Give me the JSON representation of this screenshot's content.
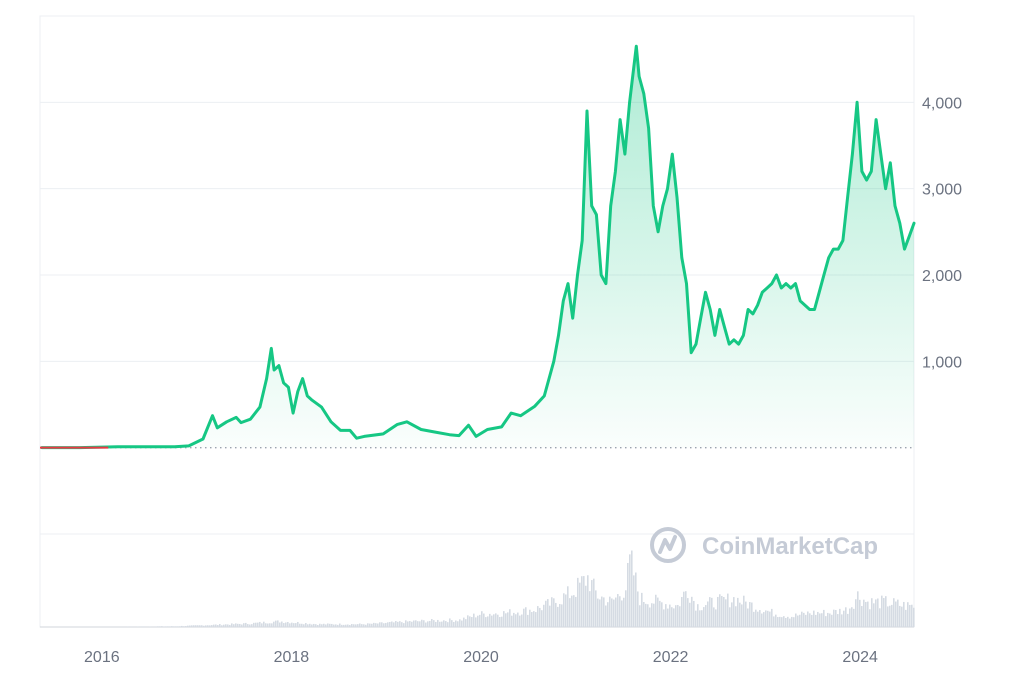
{
  "watermark": {
    "text": "CoinMarketCap",
    "icon": "coinmarketcap-logo-icon"
  },
  "colors": {
    "line": "#16c784",
    "area_top": "#16c784",
    "baseline_dotted": "#9ca3af",
    "early_segment": "#ea3943",
    "grid": "#eceff3",
    "volume": "#d5dbe3"
  },
  "chart_data": {
    "type": "area",
    "series": [
      {
        "values": [
          [
            2015.6,
            1
          ],
          [
            2016.0,
            1
          ],
          [
            2016.4,
            10
          ],
          [
            2016.8,
            10
          ],
          [
            2017.0,
            10
          ],
          [
            2017.15,
            20
          ],
          [
            2017.3,
            100
          ],
          [
            2017.4,
            370
          ],
          [
            2017.45,
            230
          ],
          [
            2017.55,
            300
          ],
          [
            2017.65,
            350
          ],
          [
            2017.7,
            290
          ],
          [
            2017.8,
            330
          ],
          [
            2017.9,
            470
          ],
          [
            2017.97,
            800
          ],
          [
            2018.02,
            1150
          ],
          [
            2018.05,
            900
          ],
          [
            2018.1,
            950
          ],
          [
            2018.15,
            750
          ],
          [
            2018.2,
            700
          ],
          [
            2018.25,
            400
          ],
          [
            2018.3,
            650
          ],
          [
            2018.35,
            800
          ],
          [
            2018.4,
            600
          ],
          [
            2018.45,
            550
          ],
          [
            2018.55,
            470
          ],
          [
            2018.65,
            300
          ],
          [
            2018.75,
            200
          ],
          [
            2018.85,
            200
          ],
          [
            2018.92,
            110
          ],
          [
            2019.0,
            130
          ],
          [
            2019.2,
            160
          ],
          [
            2019.35,
            270
          ],
          [
            2019.45,
            300
          ],
          [
            2019.6,
            210
          ],
          [
            2019.75,
            180
          ],
          [
            2019.9,
            150
          ],
          [
            2020.0,
            140
          ],
          [
            2020.1,
            260
          ],
          [
            2020.18,
            130
          ],
          [
            2020.3,
            210
          ],
          [
            2020.45,
            240
          ],
          [
            2020.55,
            400
          ],
          [
            2020.65,
            370
          ],
          [
            2020.8,
            480
          ],
          [
            2020.9,
            600
          ],
          [
            2021.0,
            1000
          ],
          [
            2021.05,
            1300
          ],
          [
            2021.1,
            1700
          ],
          [
            2021.15,
            1900
          ],
          [
            2021.2,
            1500
          ],
          [
            2021.25,
            2000
          ],
          [
            2021.3,
            2400
          ],
          [
            2021.35,
            3900
          ],
          [
            2021.4,
            2800
          ],
          [
            2021.45,
            2700
          ],
          [
            2021.5,
            2000
          ],
          [
            2021.55,
            1900
          ],
          [
            2021.6,
            2800
          ],
          [
            2021.65,
            3200
          ],
          [
            2021.7,
            3800
          ],
          [
            2021.75,
            3400
          ],
          [
            2021.8,
            4000
          ],
          [
            2021.87,
            4650
          ],
          [
            2021.9,
            4300
          ],
          [
            2021.95,
            4100
          ],
          [
            2022.0,
            3700
          ],
          [
            2022.05,
            2800
          ],
          [
            2022.1,
            2500
          ],
          [
            2022.15,
            2800
          ],
          [
            2022.2,
            3000
          ],
          [
            2022.25,
            3400
          ],
          [
            2022.3,
            2900
          ],
          [
            2022.35,
            2200
          ],
          [
            2022.4,
            1900
          ],
          [
            2022.45,
            1100
          ],
          [
            2022.5,
            1200
          ],
          [
            2022.55,
            1500
          ],
          [
            2022.6,
            1800
          ],
          [
            2022.65,
            1600
          ],
          [
            2022.7,
            1300
          ],
          [
            2022.75,
            1600
          ],
          [
            2022.8,
            1400
          ],
          [
            2022.85,
            1200
          ],
          [
            2022.9,
            1250
          ],
          [
            2022.95,
            1200
          ],
          [
            2023.0,
            1300
          ],
          [
            2023.05,
            1600
          ],
          [
            2023.1,
            1550
          ],
          [
            2023.15,
            1650
          ],
          [
            2023.2,
            1800
          ],
          [
            2023.25,
            1850
          ],
          [
            2023.3,
            1900
          ],
          [
            2023.35,
            2000
          ],
          [
            2023.4,
            1850
          ],
          [
            2023.45,
            1900
          ],
          [
            2023.5,
            1850
          ],
          [
            2023.55,
            1900
          ],
          [
            2023.6,
            1700
          ],
          [
            2023.65,
            1650
          ],
          [
            2023.7,
            1600
          ],
          [
            2023.75,
            1600
          ],
          [
            2023.8,
            1800
          ],
          [
            2023.85,
            2000
          ],
          [
            2023.9,
            2200
          ],
          [
            2023.95,
            2300
          ],
          [
            2024.0,
            2300
          ],
          [
            2024.05,
            2400
          ],
          [
            2024.1,
            2900
          ],
          [
            2024.15,
            3400
          ],
          [
            2024.2,
            4000
          ],
          [
            2024.25,
            3200
          ],
          [
            2024.3,
            3100
          ],
          [
            2024.35,
            3200
          ],
          [
            2024.4,
            3800
          ],
          [
            2024.45,
            3400
          ],
          [
            2024.5,
            3000
          ],
          [
            2024.55,
            3300
          ],
          [
            2024.6,
            2800
          ],
          [
            2024.65,
            2600
          ],
          [
            2024.7,
            2300
          ],
          [
            2024.75,
            2450
          ],
          [
            2024.8,
            2600
          ]
        ]
      }
    ],
    "x_ticks": [
      {
        "value": 2016,
        "label": "2016"
      },
      {
        "value": 2018,
        "label": "2018"
      },
      {
        "value": 2020,
        "label": "2020"
      },
      {
        "value": 2022,
        "label": "2022"
      },
      {
        "value": 2024,
        "label": "2024"
      }
    ],
    "y_ticks": [
      {
        "value": 1000,
        "label": "1,000"
      },
      {
        "value": 2000,
        "label": "2,000"
      },
      {
        "value": 3000,
        "label": "3,000"
      },
      {
        "value": 4000,
        "label": "4,000"
      }
    ],
    "xlim": [
      2015.58,
      2024.8
    ],
    "ylim": [
      -1000,
      5000
    ],
    "baseline_value": 0,
    "volume_relative": [
      [
        2015.6,
        0.0
      ],
      [
        2017.0,
        0.01
      ],
      [
        2017.8,
        0.05
      ],
      [
        2018.1,
        0.08
      ],
      [
        2018.5,
        0.04
      ],
      [
        2019.0,
        0.04
      ],
      [
        2019.5,
        0.08
      ],
      [
        2020.0,
        0.1
      ],
      [
        2020.2,
        0.18
      ],
      [
        2020.5,
        0.2
      ],
      [
        2020.8,
        0.25
      ],
      [
        2021.0,
        0.35
      ],
      [
        2021.2,
        0.5
      ],
      [
        2021.35,
        0.7
      ],
      [
        2021.45,
        0.45
      ],
      [
        2021.6,
        0.35
      ],
      [
        2021.75,
        0.55
      ],
      [
        2021.8,
        0.95
      ],
      [
        2021.9,
        0.4
      ],
      [
        2022.1,
        0.35
      ],
      [
        2022.3,
        0.3
      ],
      [
        2022.4,
        0.55
      ],
      [
        2022.5,
        0.3
      ],
      [
        2022.7,
        0.35
      ],
      [
        2022.9,
        0.4
      ],
      [
        2023.1,
        0.3
      ],
      [
        2023.3,
        0.2
      ],
      [
        2023.5,
        0.15
      ],
      [
        2023.7,
        0.2
      ],
      [
        2023.9,
        0.2
      ],
      [
        2024.1,
        0.25
      ],
      [
        2024.2,
        0.45
      ],
      [
        2024.3,
        0.35
      ],
      [
        2024.5,
        0.35
      ],
      [
        2024.7,
        0.3
      ],
      [
        2024.8,
        0.3
      ]
    ],
    "grid": true
  }
}
